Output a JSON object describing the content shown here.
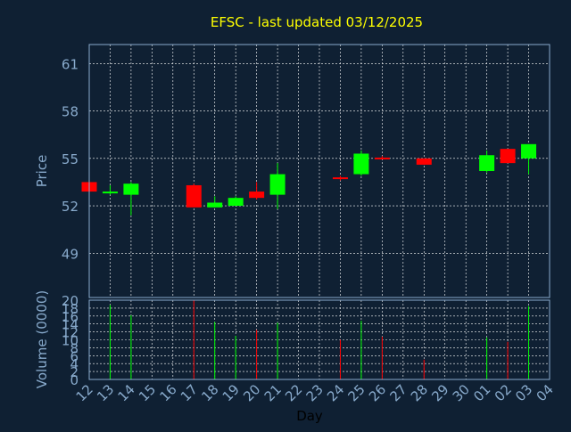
{
  "chart_data": {
    "type": "candlestick",
    "title": "EFSC - last updated 03/12/2025",
    "xlabel": "Day",
    "price_panel": {
      "ylabel": "Price",
      "ylim": [
        46.2,
        62.2
      ],
      "yticks": [
        49,
        52,
        55,
        58,
        61
      ]
    },
    "volume_panel": {
      "ylabel": "Volume (0000)",
      "ylim": [
        0,
        20
      ],
      "yticks": [
        0,
        2,
        4,
        6,
        8,
        10,
        12,
        14,
        16,
        18,
        20
      ]
    },
    "x_labels": [
      "12",
      "13",
      "14",
      "15",
      "16",
      "17",
      "18",
      "19",
      "20",
      "21",
      "22",
      "23",
      "24",
      "25",
      "26",
      "27",
      "28",
      "29",
      "30",
      "01",
      "02",
      "03",
      "04"
    ],
    "grid": true,
    "colors": {
      "background": "#0f2033",
      "grid": "#ffffff",
      "axis_text": "#88aacc",
      "title": "#ffff00",
      "up": "#00ff00",
      "down": "#ff0000",
      "xlabel": "#000000"
    },
    "candles": [
      {
        "x": "12",
        "open": 53.5,
        "high": 53.5,
        "low": 52.9,
        "close": 52.9,
        "volume": 0
      },
      {
        "x": "13",
        "open": 52.8,
        "high": 53.3,
        "low": 52.7,
        "close": 52.9,
        "volume": 18.8
      },
      {
        "x": "14",
        "open": 52.7,
        "high": 53.5,
        "low": 51.4,
        "close": 53.4,
        "volume": 16.2
      },
      {
        "x": "17",
        "open": 53.3,
        "high": 53.4,
        "low": 51.9,
        "close": 51.9,
        "volume": 20.0
      },
      {
        "x": "18",
        "open": 51.9,
        "high": 52.6,
        "low": 51.9,
        "close": 52.2,
        "volume": 14.5
      },
      {
        "x": "19",
        "open": 52.0,
        "high": 52.6,
        "low": 52.0,
        "close": 52.5,
        "volume": 11.0
      },
      {
        "x": "20",
        "open": 52.9,
        "high": 53.5,
        "low": 52.4,
        "close": 52.5,
        "volume": 12.5
      },
      {
        "x": "21",
        "open": 52.7,
        "high": 54.7,
        "low": 51.8,
        "close": 54.0,
        "volume": 14.3
      },
      {
        "x": "24",
        "open": 53.8,
        "high": 53.9,
        "low": 53.6,
        "close": 53.7,
        "volume": 10.0
      },
      {
        "x": "25",
        "open": 54.0,
        "high": 55.5,
        "low": 53.9,
        "close": 55.3,
        "volume": 14.8
      },
      {
        "x": "26",
        "open": 55.05,
        "high": 55.15,
        "low": 54.95,
        "close": 55.0,
        "volume": 10.8
      },
      {
        "x": "28",
        "open": 55.0,
        "high": 55.0,
        "low": 54.6,
        "close": 54.6,
        "volume": 5.0
      },
      {
        "x": "01",
        "open": 54.2,
        "high": 55.5,
        "low": 54.1,
        "close": 55.2,
        "volume": 10.6
      },
      {
        "x": "02",
        "open": 55.6,
        "high": 55.6,
        "low": 54.7,
        "close": 54.7,
        "volume": 9.5
      },
      {
        "x": "03",
        "open": 55.0,
        "high": 55.9,
        "low": 54.0,
        "close": 55.9,
        "volume": 18.5
      }
    ]
  }
}
